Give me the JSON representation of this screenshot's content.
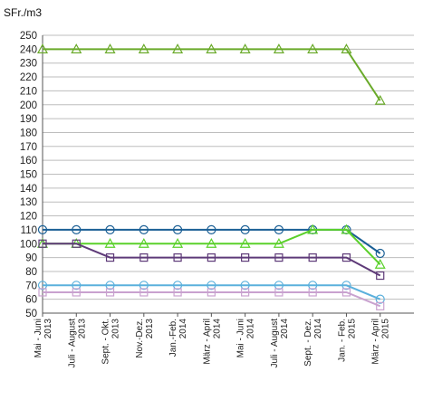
{
  "unit_label": "SFr./m3",
  "chart_data": {
    "type": "line",
    "ylabel": "SFr./m3",
    "ylim": [
      50,
      250
    ],
    "ytick_step": 10,
    "grid": true,
    "legend": "none",
    "categories": [
      [
        "Mai - Juni",
        "2013"
      ],
      [
        "Juli - August",
        "2013"
      ],
      [
        "Sept. - Okt.",
        "2013"
      ],
      [
        "Nov.-Dez.",
        "2013"
      ],
      [
        "Jan.-Feb.",
        "2014"
      ],
      [
        "März - April",
        "2014"
      ],
      [
        "Mai - Juni",
        "2014"
      ],
      [
        "Juli - August",
        "2014"
      ],
      [
        "Sept. - Dez.",
        "2014"
      ],
      [
        "Jan. - Feb.",
        "2015"
      ],
      [
        "März - April",
        "2015"
      ]
    ],
    "series": [
      {
        "color": "#6aaa2a",
        "marker": "triangle",
        "values": [
          240,
          240,
          240,
          240,
          240,
          240,
          240,
          240,
          240,
          240,
          203
        ]
      },
      {
        "color": "#1a5f95",
        "marker": "circle",
        "values": [
          110,
          110,
          110,
          110,
          110,
          110,
          110,
          110,
          110,
          110,
          93
        ]
      },
      {
        "color": "#5ad02a",
        "marker": "triangle",
        "values": [
          100,
          100,
          100,
          100,
          100,
          100,
          100,
          100,
          110,
          110,
          85
        ]
      },
      {
        "color": "#5e3a78",
        "marker": "square",
        "values": [
          100,
          100,
          90,
          90,
          90,
          90,
          90,
          90,
          90,
          90,
          77
        ]
      },
      {
        "color": "#5ab0dc",
        "marker": "circle",
        "values": [
          70,
          70,
          70,
          70,
          70,
          70,
          70,
          70,
          70,
          70,
          60
        ]
      },
      {
        "color": "#c9a2cf",
        "marker": "square",
        "values": [
          65,
          65,
          65,
          65,
          65,
          65,
          65,
          65,
          65,
          65,
          55
        ]
      }
    ]
  }
}
